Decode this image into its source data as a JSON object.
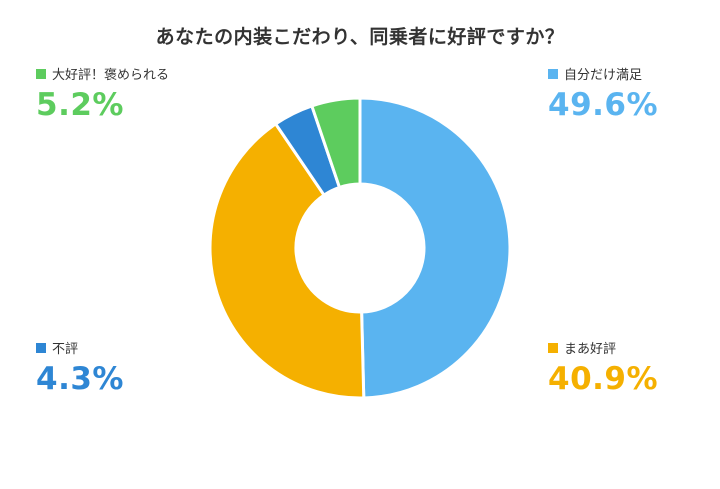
{
  "chart_data": {
    "type": "pie",
    "title": "あなたの内装こだわり、同乗者に好評ですか？",
    "categories": [
      "自分だけ満足",
      "まあ好評",
      "不評",
      "大好評！褒められる"
    ],
    "values": [
      49.6,
      40.9,
      4.3,
      5.2
    ],
    "value_labels": [
      "49.6%",
      "40.9%",
      "4.3%",
      "5.2%"
    ],
    "colors": [
      "#5ab4f0",
      "#f5b000",
      "#2e86d4",
      "#5dcc5e"
    ],
    "donut": true,
    "legend_placement": "corners"
  }
}
